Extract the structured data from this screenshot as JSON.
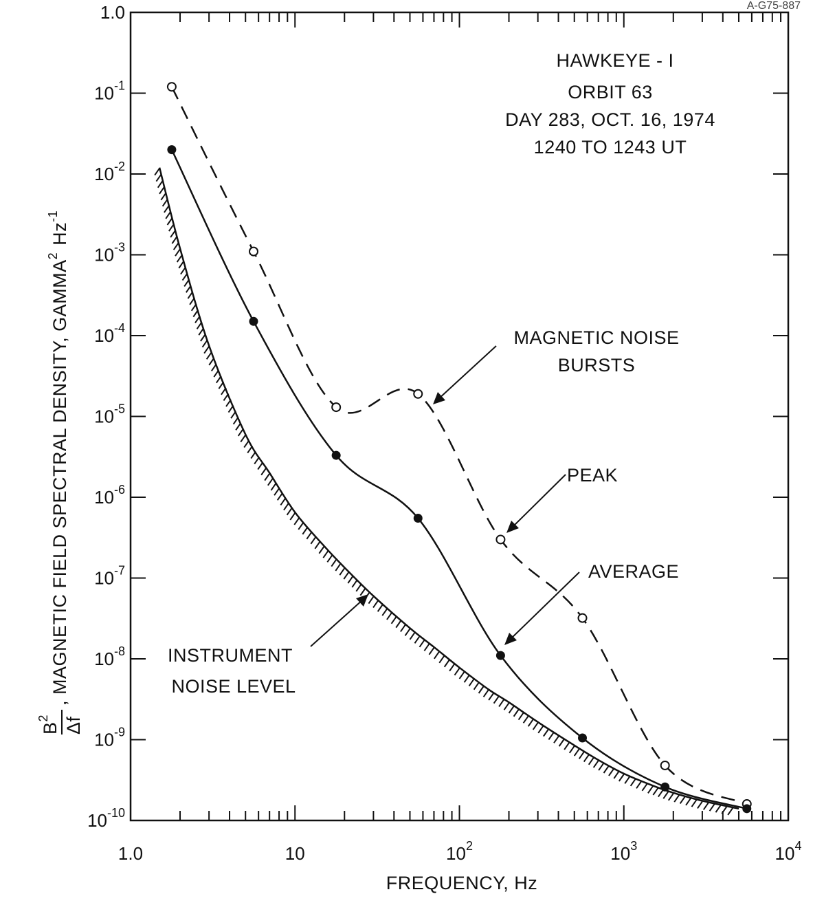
{
  "figure_number": "A-G75-887",
  "chart_data": {
    "type": "line",
    "xlabel": "FREQUENCY, Hz",
    "ylabel_frac_num": "B",
    "ylabel_frac_num_exp": "2",
    "ylabel_frac_den": "Δf",
    "ylabel_text": ", MAGNETIC FIELD SPECTRAL DENSITY, GAMMA",
    "ylabel_gamma_exp": "2",
    "ylabel_hz": "Hz",
    "ylabel_hz_exp": "-1",
    "x_scale": "log",
    "y_scale": "log",
    "xlim": [
      1,
      10000
    ],
    "ylim": [
      1e-10,
      1
    ],
    "x_ticks": [
      {
        "value": 1,
        "label": "1.0",
        "exp": ""
      },
      {
        "value": 10,
        "label": "10",
        "exp": ""
      },
      {
        "value": 100,
        "label": "10",
        "exp": "2"
      },
      {
        "value": 1000,
        "label": "10",
        "exp": "3"
      },
      {
        "value": 10000,
        "label": "10",
        "exp": "4"
      }
    ],
    "y_ticks": [
      {
        "value": 1,
        "label": "1.0",
        "exp": ""
      },
      {
        "value": 0.1,
        "label": "10",
        "exp": "-1"
      },
      {
        "value": 0.01,
        "label": "10",
        "exp": "-2"
      },
      {
        "value": 0.001,
        "label": "10",
        "exp": "-3"
      },
      {
        "value": 0.0001,
        "label": "10",
        "exp": "-4"
      },
      {
        "value": 1e-05,
        "label": "10",
        "exp": "-5"
      },
      {
        "value": 1e-06,
        "label": "10",
        "exp": "-6"
      },
      {
        "value": 1e-07,
        "label": "10",
        "exp": "-7"
      },
      {
        "value": 1e-08,
        "label": "10",
        "exp": "-8"
      },
      {
        "value": 1e-09,
        "label": "10",
        "exp": "-9"
      },
      {
        "value": 1e-10,
        "label": "10",
        "exp": "-10"
      }
    ],
    "info_lines": [
      "HAWKEYE - I",
      "ORBIT 63",
      "DAY 283, OCT. 16, 1974",
      "1240 TO 1243 UT"
    ],
    "annotations": {
      "bursts": [
        "MAGNETIC NOISE",
        "BURSTS"
      ],
      "peak": "PEAK",
      "average": "AVERAGE",
      "instrument": [
        "INSTRUMENT",
        "NOISE LEVEL"
      ]
    },
    "series": [
      {
        "style": "dashed-open-circles",
        "x": [
          1.78,
          5.6,
          17.8,
          56,
          178,
          560,
          1780,
          5600
        ],
        "y": [
          0.12,
          0.0011,
          1.3e-05,
          1.9e-05,
          3e-07,
          3.2e-08,
          4.8e-10,
          1.6e-10
        ]
      },
      {
        "style": "solid-filled-circles",
        "x": [
          1.78,
          5.6,
          17.8,
          56,
          178,
          560,
          1780,
          5600
        ],
        "y": [
          0.02,
          0.00015,
          3.3e-06,
          5.5e-07,
          1.1e-08,
          1.05e-09,
          2.6e-10,
          1.4e-10
        ]
      },
      {
        "style": "hatched-noise-floor",
        "x": [
          1.5,
          2,
          3,
          5,
          7,
          10,
          15,
          20,
          30,
          50,
          70,
          100,
          150,
          200,
          300,
          500,
          700,
          1000,
          1500,
          2000,
          3000,
          5000
        ],
        "y": [
          0.012,
          0.0012,
          7.5e-05,
          6e-06,
          2e-06,
          6.5e-07,
          2.5e-07,
          1.35e-07,
          6e-08,
          2.4e-08,
          1.4e-08,
          7.8e-09,
          4.2e-09,
          2.9e-09,
          1.65e-09,
          8.5e-10,
          5.6e-10,
          3.8e-10,
          2.7e-10,
          2.2e-10,
          1.75e-10,
          1.4e-10
        ]
      }
    ]
  }
}
